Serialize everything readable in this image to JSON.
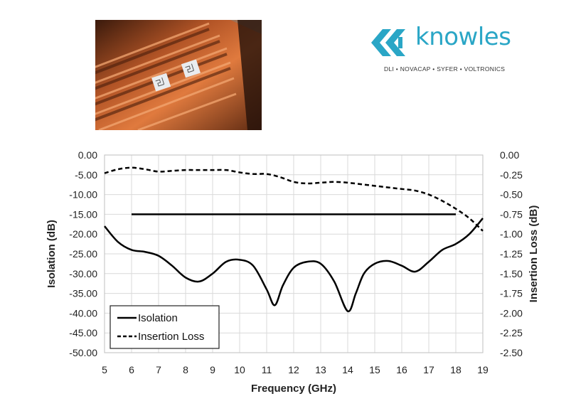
{
  "brand": {
    "name": "knowles",
    "tagline": "DLI • NOVACAP • SYFER • VOLTRONICS",
    "color": "#2aa6c6"
  },
  "photo": {
    "description_icon": "board-photo"
  },
  "chart_data": {
    "type": "line",
    "title": "",
    "xlabel": "Frequency (GHz)",
    "ylabel": "Isolation (dB)",
    "y2label": "Insertion Loss (dB)",
    "xlim": [
      5,
      19
    ],
    "ylim": [
      -50,
      0
    ],
    "y2lim": [
      -2.5,
      0
    ],
    "x_ticks": [
      "5",
      "6",
      "7",
      "8",
      "9",
      "10",
      "11",
      "12",
      "13",
      "14",
      "15",
      "16",
      "17",
      "18",
      "19"
    ],
    "y_ticks": [
      "0.00",
      "-5.00",
      "-10.00",
      "-15.00",
      "-20.00",
      "-25.00",
      "-30.00",
      "-35.00",
      "-40.00",
      "-45.00",
      "-50.00"
    ],
    "y2_ticks": [
      "0.00",
      "-0.25",
      "-0.50",
      "-0.75",
      "-1.00",
      "-1.25",
      "-1.50",
      "-1.75",
      "-2.00",
      "-2.25",
      "-2.50"
    ],
    "grid": true,
    "legend_position": "bottom-left",
    "series": [
      {
        "name": "Isolation",
        "axis": "left",
        "style": "solid",
        "x": [
          5,
          5.5,
          6,
          6.5,
          7,
          7.5,
          8,
          8.5,
          9,
          9.5,
          10,
          10.5,
          11,
          11.3,
          11.6,
          12,
          12.5,
          13,
          13.5,
          14,
          14.3,
          14.6,
          15,
          15.5,
          16,
          16.5,
          17,
          17.5,
          18,
          18.5,
          19
        ],
        "y": [
          -18,
          -22,
          -24,
          -24.5,
          -25.5,
          -28,
          -31,
          -32,
          -30,
          -27,
          -26.5,
          -28,
          -34,
          -38,
          -33,
          -28.5,
          -27,
          -27.5,
          -32,
          -39.5,
          -35,
          -30,
          -27.5,
          -26.8,
          -28,
          -29.5,
          -27,
          -24,
          -22.5,
          -20,
          -16
        ]
      },
      {
        "name": "Insertion Loss",
        "axis": "right",
        "style": "dashed",
        "x": [
          5,
          5.5,
          6,
          6.5,
          7,
          7.5,
          8,
          8.5,
          9,
          9.5,
          10,
          10.5,
          11,
          11.5,
          12,
          12.5,
          13,
          13.5,
          14,
          14.5,
          15,
          15.5,
          16,
          16.5,
          17,
          17.5,
          18,
          18.5,
          19
        ],
        "y": [
          -0.23,
          -0.18,
          -0.16,
          -0.18,
          -0.21,
          -0.2,
          -0.19,
          -0.19,
          -0.19,
          -0.19,
          -0.22,
          -0.24,
          -0.24,
          -0.28,
          -0.34,
          -0.36,
          -0.35,
          -0.34,
          -0.35,
          -0.37,
          -0.39,
          -0.41,
          -0.43,
          -0.45,
          -0.5,
          -0.58,
          -0.68,
          -0.8,
          -0.96
        ]
      },
      {
        "name": "",
        "axis": "left",
        "style": "solid",
        "x": [
          6,
          18
        ],
        "y": [
          -15,
          -15
        ]
      }
    ]
  }
}
